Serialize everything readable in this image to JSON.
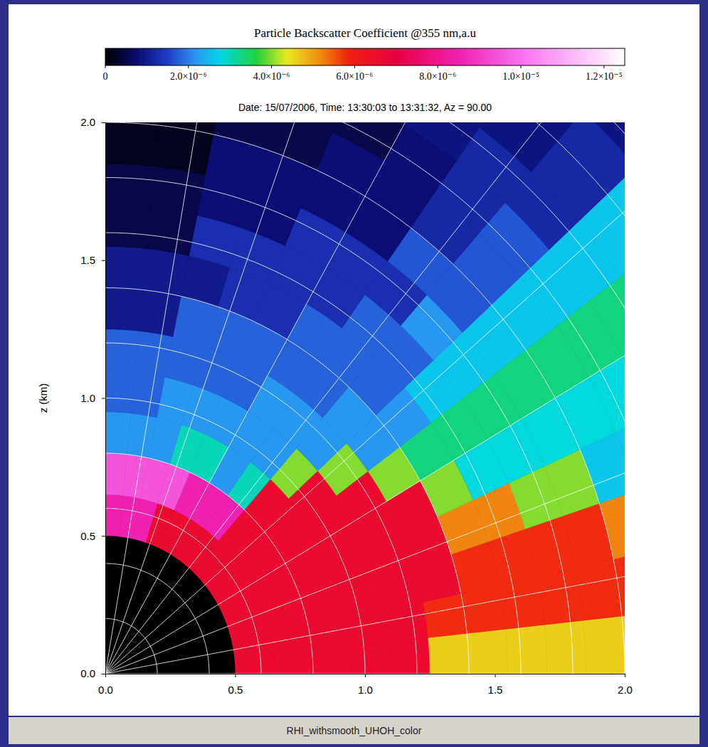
{
  "chart_data": {
    "type": "polar_heatmap",
    "title": "Date: 15/07/2006, Time: 13:30:03 to 13:31:32, Az = 90.00",
    "ylabel": "z (km)",
    "caption": "RHI_withsmooth_UHOH_color",
    "xlim": [
      0,
      2
    ],
    "ylim": [
      0,
      2
    ],
    "xticks": [
      {
        "value": 0,
        "label": "0.0"
      },
      0.5,
      {
        "value": 1,
        "label": "1.0"
      },
      1.5,
      {
        "value": 2,
        "label": "2.0"
      }
    ],
    "yticks": [
      {
        "value": 0,
        "label": "0.0"
      },
      0.5,
      {
        "value": 1,
        "label": "1.0"
      },
      1.5,
      {
        "value": 2,
        "label": "2.0"
      }
    ],
    "grid": true,
    "range_rings": [
      0.2,
      0.4,
      0.6,
      0.8,
      1.0,
      1.2,
      1.4,
      1.6,
      1.8,
      2.0,
      2.2,
      2.4,
      2.6,
      2.8
    ],
    "elevation_rays": [
      0,
      10,
      20,
      30,
      40,
      50,
      60,
      70,
      80,
      90
    ],
    "elevation_bins": [
      0,
      6,
      12,
      18,
      24,
      30,
      36,
      42,
      48,
      54,
      60,
      66,
      72,
      78,
      84,
      90
    ],
    "range_bins": [
      0.5,
      0.65,
      0.8,
      0.95,
      1.1,
      1.25,
      1.4,
      1.55,
      1.7,
      1.85,
      2.0,
      2.15,
      2.3,
      2.45,
      2.6,
      2.75,
      2.9
    ],
    "cells": [
      [
        6.6e-06,
        6.6e-06,
        6.6e-06,
        6.6e-06,
        6.6e-06,
        4.6e-06,
        4.6e-06,
        4.6e-06,
        4.6e-06,
        4.6e-06,
        4.6e-06,
        4.6e-06,
        4.6e-06,
        4.6e-06,
        4.6e-06,
        4.6e-06
      ],
      [
        6.6e-06,
        6.6e-06,
        6.6e-06,
        6.6e-06,
        6.6e-06,
        5.8e-06,
        5.8e-06,
        5.8e-06,
        5.8e-06,
        5.8e-06,
        5.8e-06,
        5.8e-06,
        5.8e-06,
        5.8e-06,
        5.8e-06,
        5.8e-06
      ],
      [
        6.6e-06,
        6.6e-06,
        6.6e-06,
        6.6e-06,
        6.6e-06,
        6.6e-06,
        5.8e-06,
        5.8e-06,
        5.8e-06,
        5.8e-06,
        5.2e-06,
        5.2e-06,
        5.2e-06,
        4e-06,
        4e-06,
        2.6e-06
      ],
      [
        6.6e-06,
        6.6e-06,
        6.6e-06,
        6.6e-06,
        6.6e-06,
        6.6e-06,
        5.2e-06,
        5.2e-06,
        4e-06,
        4e-06,
        2.6e-06,
        2.6e-06,
        2.6e-06,
        2.6e-06,
        2.6e-06,
        2.2e-06
      ],
      [
        6.6e-06,
        6.6e-06,
        6.6e-06,
        6.6e-06,
        6.6e-06,
        6.6e-06,
        4e-06,
        2.8e-06,
        2.8e-06,
        2.8e-06,
        2.8e-06,
        2.8e-06,
        2.8e-06,
        2.8e-06,
        2.8e-06,
        2.8e-06
      ],
      [
        6.6e-06,
        6.6e-06,
        6.6e-06,
        6.6e-06,
        6.6e-06,
        4e-06,
        3.3e-06,
        3.3e-06,
        3.3e-06,
        3.3e-06,
        3.3e-06,
        3.3e-06,
        3.3e-06,
        3.3e-06,
        3.3e-06,
        3.3e-06
      ],
      [
        6.6e-06,
        6.6e-06,
        6.6e-06,
        6.6e-06,
        4e-06,
        2.2e-06,
        2.2e-06,
        2.6e-06,
        2.6e-06,
        2.6e-06,
        2.6e-06,
        2.6e-06,
        2.6e-06,
        2.6e-06,
        2.6e-06,
        2.6e-06
      ],
      [
        6.6e-06,
        6.6e-06,
        6.6e-06,
        4e-06,
        2.2e-06,
        2.2e-06,
        1.8e-06,
        1.8e-06,
        2.2e-06,
        1.7e-06,
        1.7e-06,
        1.7e-06,
        1.2e-06,
        1.2e-06,
        1.2e-06,
        9e-07
      ],
      [
        6.6e-06,
        8.5e-06,
        3e-06,
        2.2e-06,
        2.2e-06,
        1.8e-06,
        1.8e-06,
        1.8e-06,
        1.3e-06,
        1.7e-06,
        1.2e-06,
        1.2e-06,
        1.2e-06,
        9e-07,
        9e-07,
        9e-07
      ],
      [
        6.6e-06,
        8.5e-06,
        2.2e-06,
        2.2e-06,
        2.2e-06,
        1.8e-06,
        1.8e-06,
        1.3e-06,
        1.3e-06,
        8e-07,
        8e-07,
        8e-07,
        9e-07,
        9e-07,
        9e-07,
        9e-07
      ],
      [
        6.6e-06,
        8.5e-06,
        3e-06,
        2.2e-06,
        1.8e-06,
        1.8e-06,
        1.3e-06,
        1.3e-06,
        1.3e-06,
        8e-07,
        8e-07,
        5e-07,
        5e-07,
        5e-07,
        5e-07,
        5e-07
      ],
      [
        6.6e-06,
        9.5e-06,
        3e-06,
        2.2e-06,
        1.8e-06,
        1.8e-06,
        1.3e-06,
        1.3e-06,
        8e-07,
        8e-07,
        5e-07,
        5e-07,
        5e-07,
        5e-07,
        5e-07,
        5e-07
      ],
      [
        8.5e-06,
        9.5e-06,
        2.2e-06,
        2.2e-06,
        1.8e-06,
        1.8e-06,
        1e-06,
        1.3e-06,
        8e-07,
        8e-07,
        5e-07,
        5e-07,
        5e-07,
        5e-07,
        5e-07,
        5e-07
      ],
      [
        8.5e-06,
        9.5e-06,
        2.2e-06,
        1.8e-06,
        1.8e-06,
        1e-06,
        1e-06,
        5e-07,
        5e-07,
        2e-07,
        2e-07,
        2e-07,
        2e-07,
        2e-07,
        2e-07,
        2e-07
      ],
      [
        8.5e-06,
        9.5e-06,
        2.2e-06,
        1.8e-06,
        1.8e-06,
        1e-06,
        1e-06,
        5e-07,
        5e-07,
        2e-07,
        2e-07,
        2e-07,
        2e-07,
        2e-07,
        2e-07,
        2e-07
      ]
    ],
    "colorbar": {
      "label": "Particle Backscatter Coefficient @355 nm,a.u",
      "lim": [
        0,
        1.25e-05
      ],
      "ticks": [
        0,
        {
          "value": 2e-06,
          "label": "2.0×10⁻⁶"
        },
        {
          "value": 4e-06,
          "label": "4.0×10⁻⁶"
        },
        {
          "value": 6e-06,
          "label": "6.0×10⁻⁶"
        },
        {
          "value": 8e-06,
          "label": "8.0×10⁻⁶"
        },
        {
          "value": 1e-05,
          "label": "1.0×10⁻⁵"
        },
        {
          "value": 1.2e-05,
          "label": "1.2×10⁻⁵"
        }
      ]
    }
  }
}
